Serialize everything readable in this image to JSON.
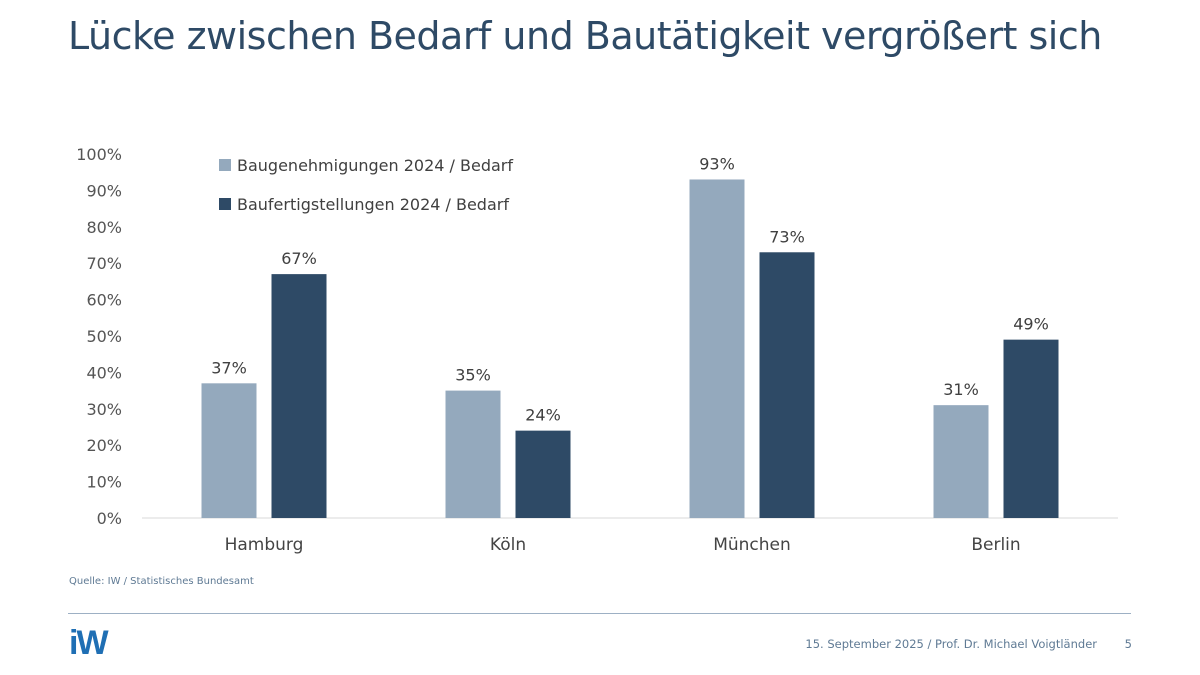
{
  "slide": {
    "title": "Lücke zwischen Bedarf und Bautätigkeit vergrößert sich",
    "source": "Quelle: IW / Statistisches Bundesamt",
    "logo_text": "iW",
    "footer": "15. September 2025 / Prof. Dr. Michael Voigtländer",
    "page_number": "5"
  },
  "colors": {
    "series1": "#94a9bd",
    "series2": "#2e4a66",
    "title": "#2e4a66",
    "logo": "#1f6fb4"
  },
  "chart_data": {
    "type": "bar",
    "title": "",
    "xlabel": "",
    "ylabel": "",
    "categories": [
      "Hamburg",
      "Köln",
      "München",
      "Berlin"
    ],
    "series": [
      {
        "name": "Baugenehmigungen 2024 / Bedarf",
        "values": [
          37,
          35,
          93,
          31
        ],
        "labels": [
          "37%",
          "35%",
          "93%",
          "31%"
        ]
      },
      {
        "name": "Baufertigstellungen 2024 / Bedarf",
        "values": [
          67,
          24,
          73,
          49
        ],
        "labels": [
          "67%",
          "24%",
          "73%",
          "49%"
        ]
      }
    ],
    "ylim": [
      0,
      100
    ],
    "yticks": [
      "0%",
      "10%",
      "20%",
      "30%",
      "40%",
      "50%",
      "60%",
      "70%",
      "80%",
      "90%",
      "100%"
    ],
    "grid": false,
    "legend": "top-left"
  }
}
